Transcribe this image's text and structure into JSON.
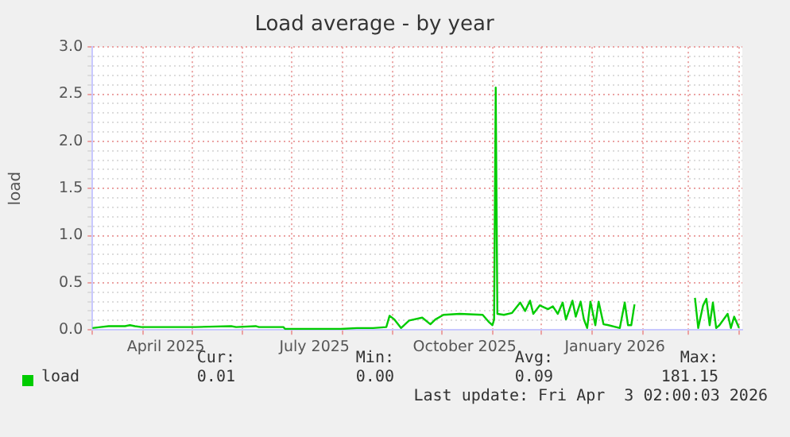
{
  "chart_data": {
    "type": "line",
    "title": "Load average - by year",
    "ylabel": "load",
    "legend": "bottom left",
    "grid": true,
    "marker": "none",
    "line_style": "solid",
    "x": [
      "2025-03-01",
      "2025-03-06",
      "2025-03-11",
      "2025-03-21",
      "2025-03-24",
      "2025-03-27",
      "2025-03-31",
      "2025-05-03",
      "2025-05-25",
      "2025-05-28",
      "2025-06-09",
      "2025-06-11",
      "2025-06-26",
      "2025-06-27",
      "2025-07-31",
      "2025-08-10",
      "2025-08-20",
      "2025-08-28",
      "2025-08-30",
      "2025-09-02",
      "2025-09-06",
      "2025-09-11",
      "2025-09-19",
      "2025-09-24",
      "2025-09-27",
      "2025-10-02",
      "2025-10-12",
      "2025-10-26",
      "2025-10-30",
      "2025-11-01",
      "2025-11-02",
      "2025-11-03",
      "2025-11-04",
      "2025-11-08",
      "2025-11-13",
      "2025-11-18",
      "2025-11-21",
      "2025-11-24",
      "2025-11-26",
      "2025-11-30",
      "2025-12-05",
      "2025-12-08",
      "2025-12-11",
      "2025-12-14",
      "2025-12-16",
      "2025-12-20",
      "2025-12-22",
      "2025-12-25",
      "2025-12-27",
      "2025-12-29",
      "2025-12-31",
      "2026-01-03",
      "2026-01-05",
      "2026-01-08",
      "2026-01-11",
      "2026-01-18",
      "2026-01-21",
      "2026-01-23",
      "2026-01-25",
      "2026-01-27",
      "2026-02-10",
      "2026-03-05",
      "2026-03-07",
      "2026-03-10",
      "2026-03-12",
      "2026-03-14",
      "2026-03-16",
      "2026-03-18",
      "2026-03-20",
      "2026-03-25",
      "2026-03-27",
      "2026-03-29",
      "2026-04-01"
    ],
    "series": [
      {
        "name": "load",
        "color": "#00cc00",
        "values": [
          0.02,
          0.03,
          0.04,
          0.04,
          0.05,
          0.04,
          0.03,
          0.03,
          0.04,
          0.03,
          0.04,
          0.03,
          0.03,
          0.01,
          0.01,
          0.02,
          0.02,
          0.03,
          0.15,
          0.11,
          0.02,
          0.1,
          0.13,
          0.06,
          0.11,
          0.16,
          0.17,
          0.16,
          0.08,
          0.05,
          0.11,
          2.57,
          0.17,
          0.16,
          0.18,
          0.29,
          0.2,
          0.31,
          0.17,
          0.26,
          0.22,
          0.25,
          0.17,
          0.29,
          0.11,
          0.31,
          0.14,
          0.3,
          0.11,
          0.02,
          0.3,
          0.05,
          0.3,
          0.06,
          0.05,
          0.02,
          0.29,
          0.05,
          0.05,
          0.27,
          null,
          0.34,
          0.02,
          0.26,
          0.33,
          0.05,
          0.29,
          0.02,
          0.05,
          0.17,
          0.02,
          0.14,
          0.02
        ]
      }
    ],
    "xlim": [
      "2025-03-01",
      "2026-04-03"
    ],
    "xticks": [
      {
        "value": "2025-03-01",
        "label": null
      },
      {
        "value": "2025-04-01",
        "label": null
      },
      {
        "value": "2025-04-15",
        "label": "April 2025"
      },
      {
        "value": "2025-05-01",
        "label": null
      },
      {
        "value": "2025-06-01",
        "label": null
      },
      {
        "value": "2025-07-01",
        "label": null
      },
      {
        "value": "2025-07-15",
        "label": "July 2025"
      },
      {
        "value": "2025-08-01",
        "label": null
      },
      {
        "value": "2025-09-01",
        "label": null
      },
      {
        "value": "2025-10-01",
        "label": null
      },
      {
        "value": "2025-10-15",
        "label": "October 2025"
      },
      {
        "value": "2025-11-01",
        "label": null
      },
      {
        "value": "2025-12-01",
        "label": null
      },
      {
        "value": "2026-01-01",
        "label": null
      },
      {
        "value": "2026-01-15",
        "label": "January 2026"
      },
      {
        "value": "2026-02-01",
        "label": null
      },
      {
        "value": "2026-03-01",
        "label": null
      },
      {
        "value": "2026-04-01",
        "label": null
      }
    ],
    "ylim": [
      0,
      3
    ],
    "yticks": [
      {
        "value": 0,
        "label": "0.0"
      },
      {
        "value": 0.1,
        "label": null
      },
      {
        "value": 0.2,
        "label": null
      },
      {
        "value": 0.3,
        "label": null
      },
      {
        "value": 0.4,
        "label": null
      },
      {
        "value": 0.5,
        "label": "0.5"
      },
      {
        "value": 0.6,
        "label": null
      },
      {
        "value": 0.7,
        "label": null
      },
      {
        "value": 0.8,
        "label": null
      },
      {
        "value": 0.9,
        "label": null
      },
      {
        "value": 1,
        "label": "1.0"
      },
      {
        "value": 1.1,
        "label": null
      },
      {
        "value": 1.2,
        "label": null
      },
      {
        "value": 1.3,
        "label": null
      },
      {
        "value": 1.4,
        "label": null
      },
      {
        "value": 1.5,
        "label": "1.5"
      },
      {
        "value": 1.6,
        "label": null
      },
      {
        "value": 1.7,
        "label": null
      },
      {
        "value": 1.8,
        "label": null
      },
      {
        "value": 1.9,
        "label": null
      },
      {
        "value": 2,
        "label": "2.0"
      },
      {
        "value": 2.1,
        "label": null
      },
      {
        "value": 2.2,
        "label": null
      },
      {
        "value": 2.3,
        "label": null
      },
      {
        "value": 2.4,
        "label": null
      },
      {
        "value": 2.5,
        "label": "2.5"
      },
      {
        "value": 2.6,
        "label": null
      },
      {
        "value": 2.7,
        "label": null
      },
      {
        "value": 2.8,
        "label": null
      },
      {
        "value": 2.9,
        "label": null
      },
      {
        "value": 3,
        "label": "3.0"
      }
    ],
    "annotations": [
      "Cur:",
      "Min:",
      "Avg:",
      "Max:",
      "0.01",
      "0.00",
      "0.09",
      "181.15",
      "Last update: Fri Apr  3 02:00:03 2026"
    ]
  }
}
